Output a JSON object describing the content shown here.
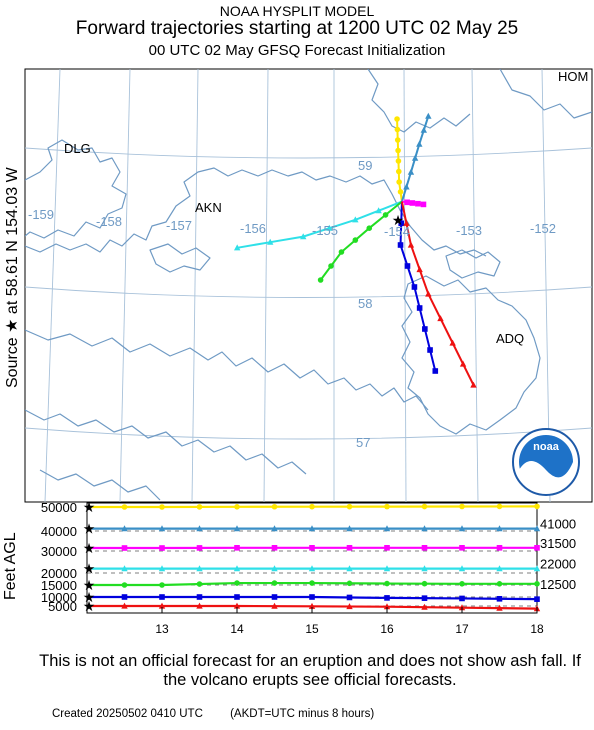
{
  "titles": {
    "line1": "NOAA HYSPLIT MODEL",
    "line2": "Forward trajectories starting at 1200 UTC 02 May 25",
    "line3": "00 UTC 02 May    GFSQ  Forecast Initialization"
  },
  "side_labels": {
    "source": "Source ★  at   58.61 N  154.03 W",
    "vertical_axis": "Feet AGL"
  },
  "disclaimer": "This is not an official forecast for an eruption and does not show ash fall. If the volcano erupts see official forecasts.",
  "footer": {
    "created": "Created 20250502 0410 UTC",
    "timezone": "(AKDT=UTC minus 8 hours)"
  },
  "logo_text": "noaa",
  "map": {
    "places": [
      "DLG",
      "AKN",
      "ADQ",
      "HOM"
    ],
    "longitude_labels": [
      "-159",
      "-158",
      "-157",
      "-156",
      "-155",
      "-154",
      "-153",
      "-152"
    ],
    "latitude_labels": [
      "59",
      "58",
      "57"
    ]
  },
  "colors": {
    "coast": "#6f9ac4",
    "grid": "#a9c2da"
  },
  "chart_data": {
    "type": "line",
    "xlabel": "",
    "ylabel": "Feet AGL",
    "x": [
      12,
      13,
      14,
      15,
      16,
      17,
      18
    ],
    "x_ticks": [
      "13",
      "14",
      "15",
      "16",
      "17",
      "18"
    ],
    "y_ticks": [
      "50000",
      "40000",
      "30000",
      "20000",
      "15000",
      "10000",
      "5000"
    ],
    "right_labels": [
      "41000",
      "31500",
      "22000",
      "12500"
    ],
    "xlim": [
      12,
      18
    ],
    "ylim": [
      0,
      50000
    ],
    "series": [
      {
        "color": "#ffe600",
        "marker": "circle",
        "values": [
          50000,
          50000,
          50200,
          50300,
          50400,
          50500,
          50600
        ],
        "track": [
          [
            -154.03,
            58.61
          ],
          [
            -154.07,
            58.75
          ],
          [
            -154.08,
            58.9
          ],
          [
            -154.09,
            59.05
          ],
          [
            -154.1,
            59.2
          ]
        ]
      },
      {
        "color": "#3a8fc6",
        "marker": "triangle",
        "values": [
          41000,
          41000,
          41000,
          41000,
          41000,
          41000,
          41000
        ],
        "track": [
          [
            -154.03,
            58.61
          ],
          [
            -153.9,
            58.82
          ],
          [
            -153.78,
            59.02
          ],
          [
            -153.65,
            59.22
          ]
        ]
      },
      {
        "color": "#ff00ff",
        "marker": "square",
        "values": [
          31500,
          31500,
          31600,
          31600,
          31600,
          31600,
          31600
        ],
        "track": [
          [
            -154.03,
            58.61
          ],
          [
            -153.88,
            58.6
          ],
          [
            -153.72,
            58.59
          ]
        ]
      },
      {
        "color": "#2fe0e8",
        "marker": "triangle",
        "values": [
          22000,
          22000,
          22000,
          22000,
          22000,
          22000,
          22000
        ],
        "track": [
          [
            -154.03,
            58.61
          ],
          [
            -154.7,
            58.48
          ],
          [
            -155.45,
            58.36
          ],
          [
            -156.4,
            58.28
          ]
        ]
      },
      {
        "color": "#22dd22",
        "marker": "circle",
        "values": [
          15000,
          15000,
          15800,
          15800,
          15600,
          15500,
          15500
        ],
        "track": [
          [
            -154.03,
            58.61
          ],
          [
            -154.5,
            58.42
          ],
          [
            -154.9,
            58.25
          ],
          [
            -155.2,
            58.05
          ]
        ]
      },
      {
        "color": "#0000dd",
        "marker": "square",
        "values": [
          10000,
          10000,
          10000,
          10000,
          9500,
          9200,
          8800
        ],
        "track": [
          [
            -154.03,
            58.61
          ],
          [
            -154.05,
            58.3
          ],
          [
            -153.85,
            58.0
          ],
          [
            -153.7,
            57.7
          ],
          [
            -153.55,
            57.4
          ]
        ]
      },
      {
        "color": "#ee1111",
        "marker": "triangle",
        "values": [
          5000,
          5000,
          5000,
          4700,
          4300,
          3300,
          2400
        ],
        "track": [
          [
            -154.03,
            58.61
          ],
          [
            -153.9,
            58.3
          ],
          [
            -153.65,
            57.95
          ],
          [
            -153.3,
            57.6
          ],
          [
            -153.0,
            57.3
          ]
        ]
      }
    ]
  }
}
